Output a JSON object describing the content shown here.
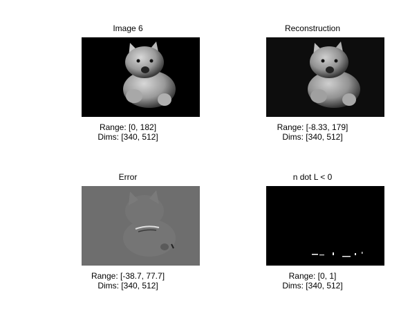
{
  "panels": [
    {
      "title": "Image 6",
      "range": "Range: [0, 182]",
      "dims": "Dims: [340, 512]"
    },
    {
      "title": "Reconstruction",
      "range": "Range: [-8.33, 179]",
      "dims": "Dims: [340, 512]"
    },
    {
      "title": "Error",
      "range": "Range: [-38.7, 77.7]",
      "dims": "Dims: [340, 512]"
    },
    {
      "title": "n dot L < 0",
      "range": "Range: [0, 1]",
      "dims": "Dims: [340, 512]"
    }
  ]
}
